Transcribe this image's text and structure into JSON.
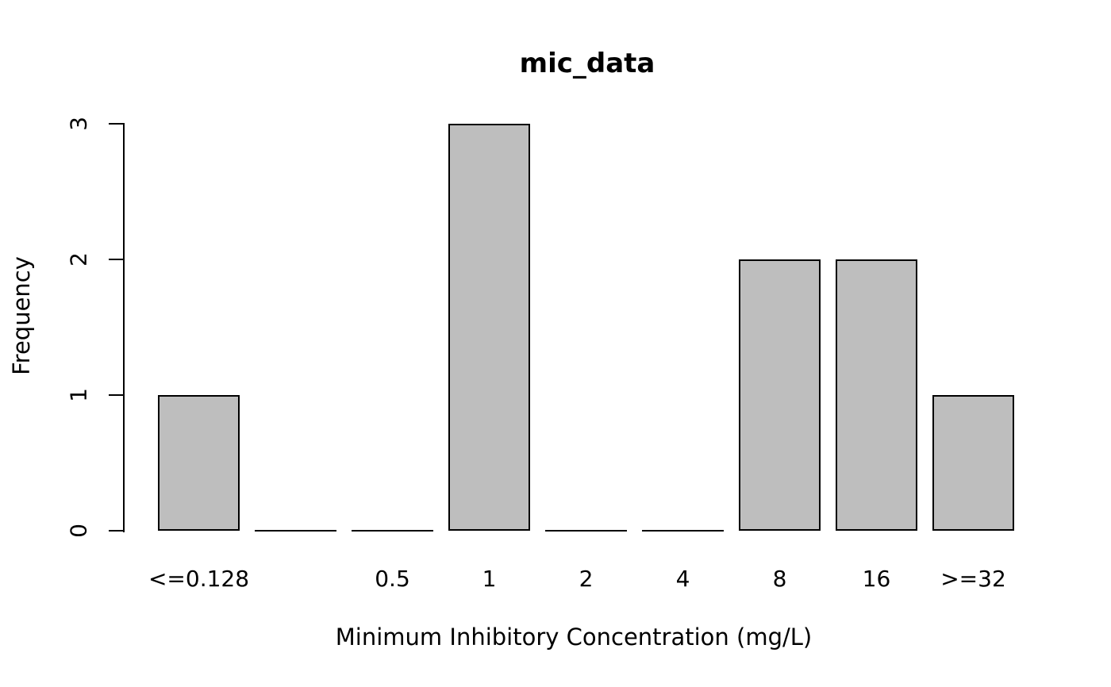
{
  "chart_data": {
    "type": "bar",
    "title": "mic_data",
    "xlabel": "Minimum Inhibitory Concentration (mg/L)",
    "ylabel": "Frequency",
    "categories": [
      "<=0.128",
      "",
      "0.5",
      "1",
      "2",
      "4",
      "8",
      "16",
      ">=32"
    ],
    "values": [
      1,
      0,
      0,
      3,
      0,
      0,
      2,
      2,
      1
    ],
    "yticks": [
      "0",
      "1",
      "2",
      "3"
    ],
    "ylim": [
      0,
      3
    ],
    "grid": false,
    "legend": "none",
    "bar_fill": "#bebebe",
    "bar_border": "#000000",
    "axis_color": "#000000",
    "background": "#ffffff"
  }
}
